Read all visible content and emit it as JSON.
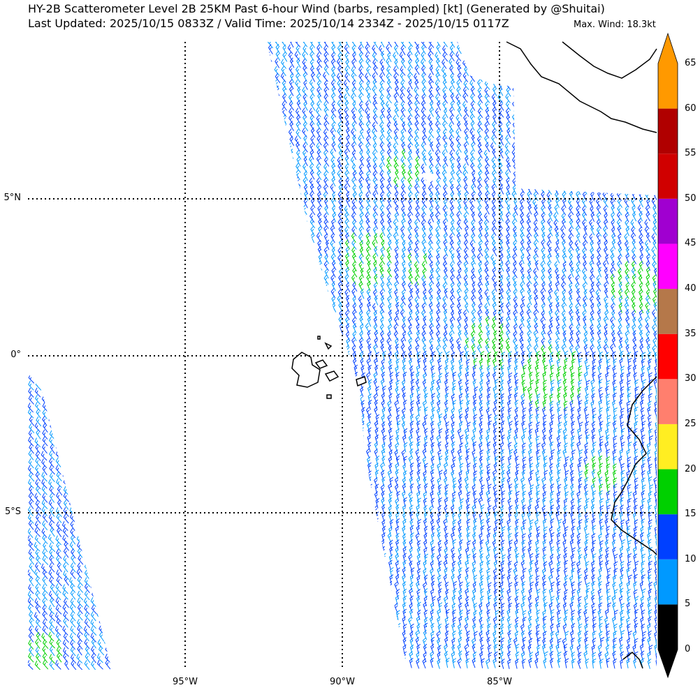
{
  "header": {
    "title_line1": "HY-2B Scatterometer Level 2B 25KM Past 6-hour Wind (barbs, resampled) [kt] (Generated by @Shuitai)",
    "title_line2": "Last Updated: 2025/10/15 0833Z / Valid Time: 2025/10/14 2334Z - 2025/10/15 0117Z",
    "max_wind": "Max. Wind: 18.3kt"
  },
  "map": {
    "lat_labels": [
      "5°N",
      "0°",
      "5°S"
    ],
    "lon_labels": [
      "95°W",
      "90°W",
      "85°W"
    ],
    "lat_values": [
      5,
      0,
      -5
    ],
    "lon_values": [
      -95,
      -90,
      -85
    ],
    "extent": {
      "lon_min": -100,
      "lon_max": -80,
      "lat_min": -10,
      "lat_max": 10
    },
    "grid": "dotted",
    "barb_colors": {
      "0-5": "#000000",
      "5-10": "#0099ff",
      "10-15": "#0040ff",
      "15-20": "#00d000"
    }
  },
  "colorbar": {
    "ticks": [
      "0",
      "5",
      "10",
      "15",
      "20",
      "25",
      "30",
      "35",
      "40",
      "45",
      "50",
      "55",
      "60",
      "65"
    ],
    "colors": [
      "#000000",
      "#0099ff",
      "#0040ff",
      "#00d000",
      "#ffee22",
      "#ff7f6e",
      "#ff0000",
      "#b5784a",
      "#ff00ff",
      "#a000d0",
      "#d00000",
      "#b00000",
      "#ff9900"
    ]
  }
}
